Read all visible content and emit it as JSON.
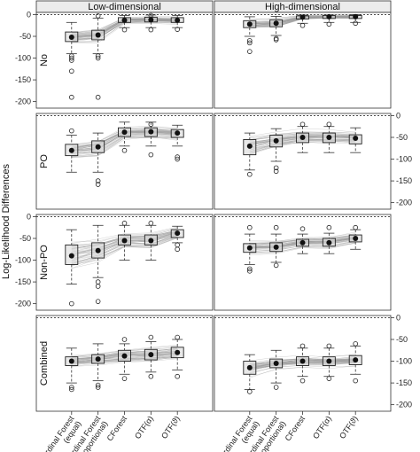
{
  "chart_data": {
    "type": "boxplot",
    "ylabel": "Log-Likelihood Differences",
    "columns": [
      "Low-dimensional",
      "High-dimensional"
    ],
    "rows": [
      "No",
      "PO",
      "Non-PO",
      "Combined"
    ],
    "categories": [
      "Ordinal Forest (equal)",
      "Ordinal Forest (proportional)",
      "CForest",
      "OTF(α)",
      "OTF(ϑ)"
    ],
    "category_lines": [
      [
        "Ordinal Forest",
        "(equal)"
      ],
      [
        "Ordinal Forest",
        "(proportional)"
      ],
      [
        "CForest"
      ],
      [
        "OTF(α)"
      ],
      [
        "OTF(ϑ)"
      ]
    ],
    "ylim": [
      -215,
      5
    ],
    "yticks": [
      0,
      -50,
      -100,
      -150,
      -200
    ],
    "reference_line": 0,
    "panels": [
      {
        "row": "No",
        "column": "Low-dimensional",
        "yaxis": "left",
        "boxes": [
          {
            "q1": -62,
            "median": -52,
            "q3": -40,
            "lower": -90,
            "upper": -18,
            "mean": -52,
            "outliers": [
              -100,
              -105,
              -130,
              -190,
              -95
            ]
          },
          {
            "q1": -58,
            "median": -48,
            "q3": -36,
            "lower": -90,
            "upper": -8,
            "mean": -47,
            "outliers": [
              -95,
              -100,
              -190,
              -3
            ]
          },
          {
            "q1": -18,
            "median": -13,
            "q3": -7,
            "lower": -30,
            "upper": -2,
            "mean": -13,
            "outliers": [
              -35
            ]
          },
          {
            "q1": -17,
            "median": -12,
            "q3": -6,
            "lower": -30,
            "upper": -1,
            "mean": -12,
            "outliers": [
              -35,
              -2
            ]
          },
          {
            "q1": -18,
            "median": -13,
            "q3": -7,
            "lower": -30,
            "upper": -2,
            "mean": -13,
            "outliers": [
              -34
            ]
          }
        ]
      },
      {
        "row": "No",
        "column": "High-dimensional",
        "yaxis": "none",
        "boxes": [
          {
            "q1": -30,
            "median": -22,
            "q3": -14,
            "lower": -50,
            "upper": -5,
            "mean": -22,
            "outliers": [
              -60,
              -65,
              -85
            ]
          },
          {
            "q1": -28,
            "median": -20,
            "q3": -12,
            "lower": -48,
            "upper": -4,
            "mean": -20,
            "outliers": [
              -55,
              -58
            ]
          },
          {
            "q1": -10,
            "median": -6,
            "q3": -3,
            "lower": -20,
            "upper": -1,
            "mean": -6,
            "outliers": [
              -25
            ]
          },
          {
            "q1": -9,
            "median": -5,
            "q3": -2,
            "lower": -18,
            "upper": -1,
            "mean": -5,
            "outliers": [
              -22
            ]
          },
          {
            "q1": -9,
            "median": -5,
            "q3": -2,
            "lower": -18,
            "upper": 0,
            "mean": -5,
            "outliers": [
              -20
            ]
          }
        ]
      },
      {
        "row": "PO",
        "column": "Low-dimensional",
        "yaxis": "none",
        "boxes": [
          {
            "q1": -92,
            "median": -80,
            "q3": -66,
            "lower": -130,
            "upper": -45,
            "mean": -80,
            "outliers": [
              -35
            ]
          },
          {
            "q1": -85,
            "median": -72,
            "q3": -58,
            "lower": -130,
            "upper": -40,
            "mean": -72,
            "outliers": [
              -150,
              -158
            ]
          },
          {
            "q1": -48,
            "median": -38,
            "q3": -28,
            "lower": -70,
            "upper": -15,
            "mean": -38,
            "outliers": [
              -80
            ]
          },
          {
            "q1": -48,
            "median": -37,
            "q3": -28,
            "lower": -70,
            "upper": -15,
            "mean": -37,
            "outliers": [
              -90,
              -20
            ]
          },
          {
            "q1": -50,
            "median": -40,
            "q3": -32,
            "lower": -70,
            "upper": -22,
            "mean": -40,
            "outliers": [
              -95,
              -100
            ]
          }
        ]
      },
      {
        "row": "PO",
        "column": "High-dimensional",
        "yaxis": "right",
        "boxes": [
          {
            "q1": -90,
            "median": -70,
            "q3": -55,
            "lower": -125,
            "upper": -40,
            "mean": -70,
            "outliers": [
              -135
            ]
          },
          {
            "q1": -72,
            "median": -58,
            "q3": -45,
            "lower": -105,
            "upper": -30,
            "mean": -58,
            "outliers": [
              -120,
              -128
            ]
          },
          {
            "q1": -62,
            "median": -50,
            "q3": -40,
            "lower": -85,
            "upper": -25,
            "mean": -50,
            "outliers": [
              -20
            ]
          },
          {
            "q1": -62,
            "median": -50,
            "q3": -40,
            "lower": -85,
            "upper": -25,
            "mean": -50,
            "outliers": [
              -20
            ]
          },
          {
            "q1": -65,
            "median": -52,
            "q3": -44,
            "lower": -85,
            "upper": -28,
            "mean": -52,
            "outliers": []
          }
        ]
      },
      {
        "row": "Non-PO",
        "column": "Low-dimensional",
        "yaxis": "left",
        "boxes": [
          {
            "q1": -110,
            "median": -90,
            "q3": -65,
            "lower": -155,
            "upper": -30,
            "mean": -90,
            "outliers": [
              -200
            ]
          },
          {
            "q1": -95,
            "median": -78,
            "q3": -60,
            "lower": -140,
            "upper": -20,
            "mean": -78,
            "outliers": [
              -150,
              -160,
              -195
            ]
          },
          {
            "q1": -65,
            "median": -55,
            "q3": -42,
            "lower": -100,
            "upper": -20,
            "mean": -55,
            "outliers": [
              -15
            ]
          },
          {
            "q1": -65,
            "median": -55,
            "q3": -42,
            "lower": -100,
            "upper": -20,
            "mean": -55,
            "outliers": [
              -15
            ]
          },
          {
            "q1": -48,
            "median": -38,
            "q3": -30,
            "lower": -60,
            "upper": -22,
            "mean": -38,
            "outliers": [
              -65,
              -75
            ]
          }
        ]
      },
      {
        "row": "Non-PO",
        "column": "High-dimensional",
        "yaxis": "none",
        "boxes": [
          {
            "q1": -82,
            "median": -72,
            "q3": -62,
            "lower": -110,
            "upper": -40,
            "mean": -72,
            "outliers": [
              -120,
              -125,
              -25
            ]
          },
          {
            "q1": -80,
            "median": -70,
            "q3": -60,
            "lower": -105,
            "upper": -40,
            "mean": -70,
            "outliers": [
              -112,
              -25
            ]
          },
          {
            "q1": -68,
            "median": -60,
            "q3": -52,
            "lower": -85,
            "upper": -40,
            "mean": -60,
            "outliers": [
              -28
            ]
          },
          {
            "q1": -68,
            "median": -60,
            "q3": -50,
            "lower": -85,
            "upper": -38,
            "mean": -60,
            "outliers": [
              -25
            ]
          },
          {
            "q1": -58,
            "median": -50,
            "q3": -42,
            "lower": -75,
            "upper": -30,
            "mean": -50,
            "outliers": [
              -25
            ]
          }
        ]
      },
      {
        "row": "Combined",
        "column": "Low-dimensional",
        "yaxis": "none",
        "boxes": [
          {
            "q1": -110,
            "median": -100,
            "q3": -90,
            "lower": -150,
            "upper": -70,
            "mean": -100,
            "outliers": [
              -160,
              -165
            ]
          },
          {
            "q1": -105,
            "median": -95,
            "q3": -85,
            "lower": -145,
            "upper": -60,
            "mean": -95,
            "outliers": [
              -155,
              -160
            ]
          },
          {
            "q1": -100,
            "median": -88,
            "q3": -75,
            "lower": -130,
            "upper": -60,
            "mean": -88,
            "outliers": [
              -140,
              -50
            ]
          },
          {
            "q1": -97,
            "median": -85,
            "q3": -73,
            "lower": -125,
            "upper": -55,
            "mean": -85,
            "outliers": [
              -135,
              -45
            ]
          },
          {
            "q1": -92,
            "median": -80,
            "q3": -68,
            "lower": -120,
            "upper": -50,
            "mean": -80,
            "outliers": [
              -135,
              -45
            ]
          }
        ]
      },
      {
        "row": "Combined",
        "column": "High-dimensional",
        "yaxis": "right",
        "boxes": [
          {
            "q1": -130,
            "median": -115,
            "q3": -100,
            "lower": -165,
            "upper": -85,
            "mean": -115,
            "outliers": [
              -170
            ]
          },
          {
            "q1": -115,
            "median": -105,
            "q3": -95,
            "lower": -150,
            "upper": -75,
            "mean": -105,
            "outliers": [
              -160
            ]
          },
          {
            "q1": -110,
            "median": -100,
            "q3": -90,
            "lower": -135,
            "upper": -70,
            "mean": -100,
            "outliers": [
              -145,
              -65
            ]
          },
          {
            "q1": -110,
            "median": -100,
            "q3": -90,
            "lower": -135,
            "upper": -70,
            "mean": -100,
            "outliers": [
              -140,
              -65
            ]
          },
          {
            "q1": -108,
            "median": -97,
            "q3": -87,
            "lower": -130,
            "upper": -65,
            "mean": -97,
            "outliers": [
              -145,
              -60
            ]
          }
        ]
      }
    ]
  }
}
